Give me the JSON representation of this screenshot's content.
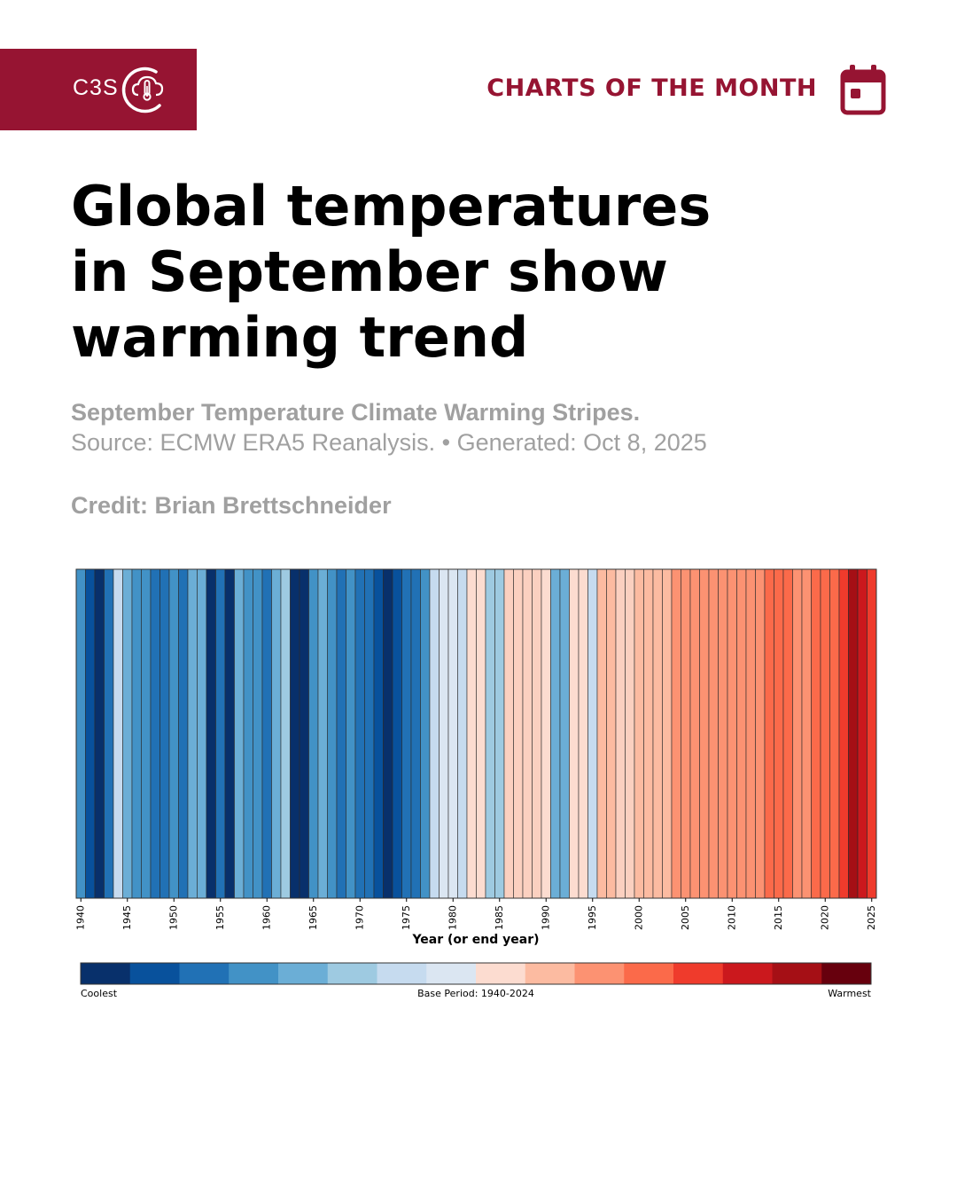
{
  "header": {
    "logo_text": "C3S",
    "section_label": "CHARTS OF THE MONTH",
    "brand_color": "#961432",
    "logo_icon": "cloud-thermometer-icon",
    "section_icon": "calendar-icon"
  },
  "headline": {
    "line1": "Global temperatures",
    "line2": "in September show",
    "line3": "warming trend"
  },
  "caption": {
    "subtitle": "September Temperature Climate Warming Stripes.",
    "source": "Source: ECMW ERA5 Reanalysis. • Generated: Oct 8, 2025",
    "credit": "Credit: Brian Brettschneider"
  },
  "chart_data": {
    "type": "heatmap",
    "title": "September Temperature Climate Warming Stripes",
    "xlabel": "Year (or end year)",
    "ylabel": "",
    "years": [
      1940,
      1941,
      1942,
      1943,
      1944,
      1945,
      1946,
      1947,
      1948,
      1949,
      1950,
      1951,
      1952,
      1953,
      1954,
      1955,
      1956,
      1957,
      1958,
      1959,
      1960,
      1961,
      1962,
      1963,
      1964,
      1965,
      1966,
      1967,
      1968,
      1969,
      1970,
      1971,
      1972,
      1973,
      1974,
      1975,
      1976,
      1977,
      1978,
      1979,
      1980,
      1981,
      1982,
      1983,
      1984,
      1985,
      1986,
      1987,
      1988,
      1989,
      1990,
      1991,
      1992,
      1993,
      1994,
      1995,
      1996,
      1997,
      1998,
      1999,
      2000,
      2001,
      2002,
      2003,
      2004,
      2005,
      2006,
      2007,
      2008,
      2009,
      2010,
      2011,
      2012,
      2013,
      2014,
      2015,
      2016,
      2017,
      2018,
      2019,
      2020,
      2021,
      2022,
      2023,
      2024,
      2025
    ],
    "color_class": [
      3,
      1,
      0,
      2,
      6,
      4,
      3,
      3,
      2,
      2,
      3,
      2,
      4,
      4,
      0,
      2,
      0,
      4,
      3,
      3,
      2,
      4,
      5,
      0,
      0,
      3,
      4,
      3,
      2,
      3,
      2,
      2,
      1,
      0,
      1,
      2,
      2,
      3,
      6,
      7,
      7,
      6,
      8,
      8,
      5,
      5,
      9,
      9,
      9,
      9,
      8,
      4,
      4,
      8,
      8,
      6,
      10,
      10,
      9,
      9,
      10,
      10,
      10,
      10,
      11,
      11,
      11,
      11,
      11,
      11,
      11,
      11,
      11,
      11,
      12,
      12,
      12,
      11,
      11,
      12,
      12,
      12,
      13,
      15,
      14,
      13
    ],
    "x_ticks": [
      "1940",
      "1945",
      "1950",
      "1955",
      "1960",
      "1965",
      "1970",
      "1975",
      "1980",
      "1985",
      "1990",
      "1995",
      "2000",
      "2005",
      "2010",
      "2015",
      "2020",
      "2025"
    ],
    "palette": [
      "#08306b",
      "#08519c",
      "#2171b5",
      "#4292c6",
      "#6baed6",
      "#9ecae1",
      "#c6dbef",
      "#dbe6f2",
      "#fcdcd0",
      "#fbd0c0",
      "#fcbba1",
      "#fc9272",
      "#fb6a4a",
      "#ef3b2c",
      "#cb181d",
      "#a50f15",
      "#67000d"
    ],
    "colorbar": {
      "colors": [
        "#08306b",
        "#08519c",
        "#2171b5",
        "#4292c6",
        "#6baed6",
        "#9ecae1",
        "#c6dbef",
        "#dbe6f2",
        "#fcdcd0",
        "#fcbba1",
        "#fc9272",
        "#fb6a4a",
        "#ef3b2c",
        "#cb181d",
        "#a50f15",
        "#67000d"
      ],
      "left_label": "Coolest",
      "center_label": "Base Period: 1940-2024",
      "right_label": "Warmest"
    }
  }
}
